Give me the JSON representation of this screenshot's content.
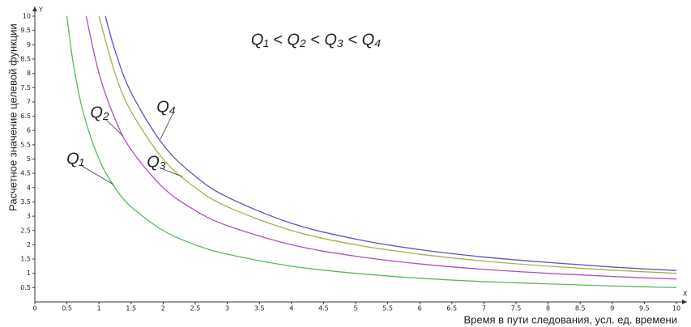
{
  "chart_data": {
    "type": "line",
    "annotation": "Q₁ < Q₂ < Q₃ < Q₄",
    "x_label": "Время в пути следования, усл. ед. времени",
    "y_label": "Расчетное значение целевой функции",
    "x_axis_letter": "X",
    "y_axis_letter": "Y",
    "xlim": [
      0,
      10
    ],
    "ylim": [
      0,
      10
    ],
    "xticks": [
      0,
      0.5,
      1,
      1.5,
      2,
      2.5,
      3,
      3.5,
      4,
      4.5,
      5,
      5.5,
      6,
      6.5,
      7,
      7.5,
      8,
      8.5,
      9,
      9.5,
      10
    ],
    "yticks": [
      0.5,
      1,
      1.5,
      2,
      2.5,
      3,
      3.5,
      4,
      4.5,
      5,
      5.5,
      6,
      6.5,
      7,
      7.5,
      8,
      8.5,
      9,
      9.5,
      10
    ],
    "series": [
      {
        "name": "Q₁",
        "color": "#5cb85c",
        "x": [
          0.5,
          0.6,
          0.75,
          1,
          1.25,
          1.5,
          2,
          2.5,
          3,
          4,
          5,
          6,
          7,
          8,
          9,
          10
        ],
        "values": [
          10,
          8.33,
          6.67,
          5,
          4,
          3.33,
          2.5,
          2,
          1.67,
          1.25,
          1,
          0.83,
          0.71,
          0.63,
          0.56,
          0.5
        ]
      },
      {
        "name": "Q₂",
        "color": "#b050c0",
        "x": [
          0.8,
          1,
          1.25,
          1.5,
          2,
          2.5,
          3,
          4,
          5,
          6,
          7,
          8,
          9,
          10
        ],
        "values": [
          10,
          8,
          6.4,
          5.33,
          4,
          3.2,
          2.67,
          2,
          1.6,
          1.33,
          1.14,
          1,
          0.89,
          0.8
        ]
      },
      {
        "name": "Q₃",
        "color": "#a8b048",
        "x": [
          1,
          1.25,
          1.5,
          2,
          2.5,
          3,
          4,
          5,
          6,
          7,
          8,
          9,
          10
        ],
        "values": [
          10,
          8,
          6.67,
          5,
          4,
          3.33,
          2.5,
          2,
          1.67,
          1.43,
          1.25,
          1.11,
          1
        ]
      },
      {
        "name": "Q₄",
        "color": "#5858b8",
        "x": [
          1.1,
          1.25,
          1.5,
          2,
          2.5,
          3,
          4,
          5,
          6,
          7,
          8,
          9,
          10
        ],
        "values": [
          10,
          8.8,
          7.33,
          5.5,
          4.4,
          3.67,
          2.75,
          2.2,
          1.83,
          1.57,
          1.38,
          1.22,
          1.1
        ]
      }
    ]
  }
}
